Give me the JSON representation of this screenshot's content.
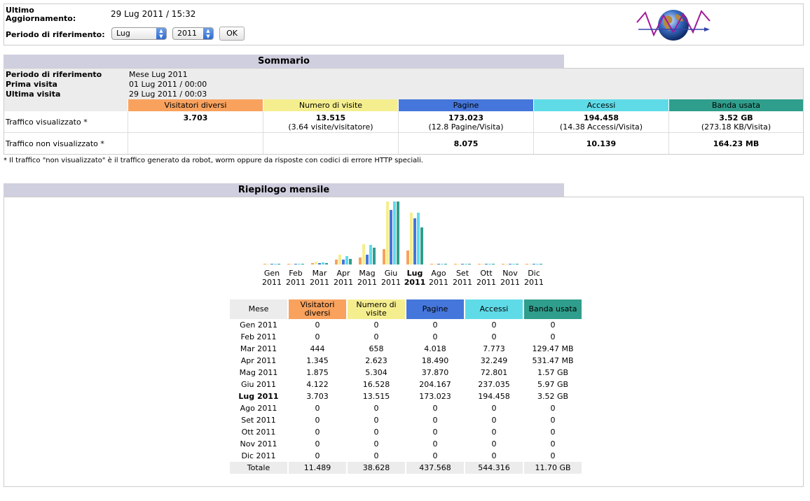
{
  "header": {
    "update_label_1": "Ultimo",
    "update_label_2": "Aggiornamento:",
    "update_value": "29 Lug 2011 / 15:32",
    "period_label": "Periodo di riferimento:",
    "month_select": "Lug",
    "year_select": "2011",
    "ok_label": "OK"
  },
  "colors": {
    "visitors": "#f8a25e",
    "visits": "#f5ee8f",
    "pages": "#4576db",
    "hits": "#5fdbe8",
    "bandwidth": "#2f9e8c"
  },
  "summary": {
    "title": "Sommario",
    "period_label": "Periodo di riferimento",
    "period_value": "Mese Lug 2011",
    "first_label": "Prima visita",
    "first_value": "01 Lug 2011 / 00:00",
    "last_label": "Ultima visita",
    "last_value": "29 Lug 2011 / 00:03",
    "columns": [
      "Visitatori diversi",
      "Numero di visite",
      "Pagine",
      "Accessi",
      "Banda usata"
    ],
    "row_viewed": {
      "label": "Traffico visualizzato *",
      "visitors": "3.703",
      "visits": "13.515",
      "visits_sub": "(3.64 visite/visitatore)",
      "pages": "173.023",
      "pages_sub": "(12.8 Pagine/Visita)",
      "hits": "194.458",
      "hits_sub": "(14.38 Accessi/Visita)",
      "bandwidth": "3.52 GB",
      "bandwidth_sub": "(273.18 KB/Visita)"
    },
    "row_not_viewed": {
      "label": "Traffico non visualizzato *",
      "pages": "8.075",
      "hits": "10.139",
      "bandwidth": "164.23 MB"
    },
    "footnote": "* Il traffico \"non visualizzato\" è il traffico generato da robot, worm oppure da risposte con codici di errore HTTP speciali."
  },
  "monthly": {
    "title": "Riepilogo mensile",
    "col_month": "Mese",
    "col_visitors": "Visitatori diversi",
    "col_visits": "Numero di visite",
    "col_pages": "Pagine",
    "col_hits": "Accessi",
    "col_bandwidth": "Banda usata",
    "rows": [
      {
        "month": "Gen 2011",
        "visitors": "0",
        "visits": "0",
        "pages": "0",
        "hits": "0",
        "bandwidth": "0"
      },
      {
        "month": "Feb 2011",
        "visitors": "0",
        "visits": "0",
        "pages": "0",
        "hits": "0",
        "bandwidth": "0"
      },
      {
        "month": "Mar 2011",
        "visitors": "444",
        "visits": "658",
        "pages": "4.018",
        "hits": "7.773",
        "bandwidth": "129.47 MB"
      },
      {
        "month": "Apr 2011",
        "visitors": "1.345",
        "visits": "2.623",
        "pages": "18.490",
        "hits": "32.249",
        "bandwidth": "531.47 MB"
      },
      {
        "month": "Mag 2011",
        "visitors": "1.875",
        "visits": "5.304",
        "pages": "37.870",
        "hits": "72.801",
        "bandwidth": "1.57 GB"
      },
      {
        "month": "Giu 2011",
        "visitors": "4.122",
        "visits": "16.528",
        "pages": "204.167",
        "hits": "237.035",
        "bandwidth": "5.97 GB"
      },
      {
        "month": "Lug 2011",
        "visitors": "3.703",
        "visits": "13.515",
        "pages": "173.023",
        "hits": "194.458",
        "bandwidth": "3.52 GB",
        "current": true
      },
      {
        "month": "Ago 2011",
        "visitors": "0",
        "visits": "0",
        "pages": "0",
        "hits": "0",
        "bandwidth": "0"
      },
      {
        "month": "Set 2011",
        "visitors": "0",
        "visits": "0",
        "pages": "0",
        "hits": "0",
        "bandwidth": "0"
      },
      {
        "month": "Ott 2011",
        "visitors": "0",
        "visits": "0",
        "pages": "0",
        "hits": "0",
        "bandwidth": "0"
      },
      {
        "month": "Nov 2011",
        "visitors": "0",
        "visits": "0",
        "pages": "0",
        "hits": "0",
        "bandwidth": "0"
      },
      {
        "month": "Dic 2011",
        "visitors": "0",
        "visits": "0",
        "pages": "0",
        "hits": "0",
        "bandwidth": "0"
      }
    ],
    "total": {
      "month": "Totale",
      "visitors": "11.489",
      "visits": "38.628",
      "pages": "437.568",
      "hits": "544.316",
      "bandwidth": "11.70 GB"
    }
  },
  "chart_data": {
    "type": "bar",
    "categories": [
      {
        "mon": "Gen",
        "year": "2011"
      },
      {
        "mon": "Feb",
        "year": "2011"
      },
      {
        "mon": "Mar",
        "year": "2011"
      },
      {
        "mon": "Apr",
        "year": "2011"
      },
      {
        "mon": "Mag",
        "year": "2011"
      },
      {
        "mon": "Giu",
        "year": "2011"
      },
      {
        "mon": "Lug",
        "year": "2011"
      },
      {
        "mon": "Ago",
        "year": "2011"
      },
      {
        "mon": "Set",
        "year": "2011"
      },
      {
        "mon": "Ott",
        "year": "2011"
      },
      {
        "mon": "Nov",
        "year": "2011"
      },
      {
        "mon": "Dic",
        "year": "2011"
      }
    ],
    "current_index": 6,
    "series": [
      {
        "values": [
          0,
          0,
          444,
          1345,
          1875,
          4122,
          3703,
          0,
          0,
          0,
          0,
          0
        ]
      },
      {
        "values": [
          0,
          0,
          658,
          2623,
          5304,
          16528,
          13515,
          0,
          0,
          0,
          0,
          0
        ]
      },
      {
        "values": [
          0,
          0,
          4018,
          18490,
          37870,
          204167,
          173023,
          0,
          0,
          0,
          0,
          0
        ]
      },
      {
        "values": [
          0,
          0,
          7773,
          32249,
          72801,
          237035,
          194458,
          0,
          0,
          0,
          0,
          0
        ]
      },
      {
        "values": [
          0,
          0,
          129.47,
          531.47,
          1607.68,
          6113.28,
          3604.48,
          0,
          0,
          0,
          0,
          0
        ],
        "unit": "MB"
      }
    ],
    "series_color_keys": [
      "visitors",
      "visits",
      "pages",
      "hits",
      "bandwidth"
    ],
    "scale_groups": [
      [
        0,
        1
      ],
      [
        2,
        3
      ],
      [
        4
      ]
    ]
  }
}
